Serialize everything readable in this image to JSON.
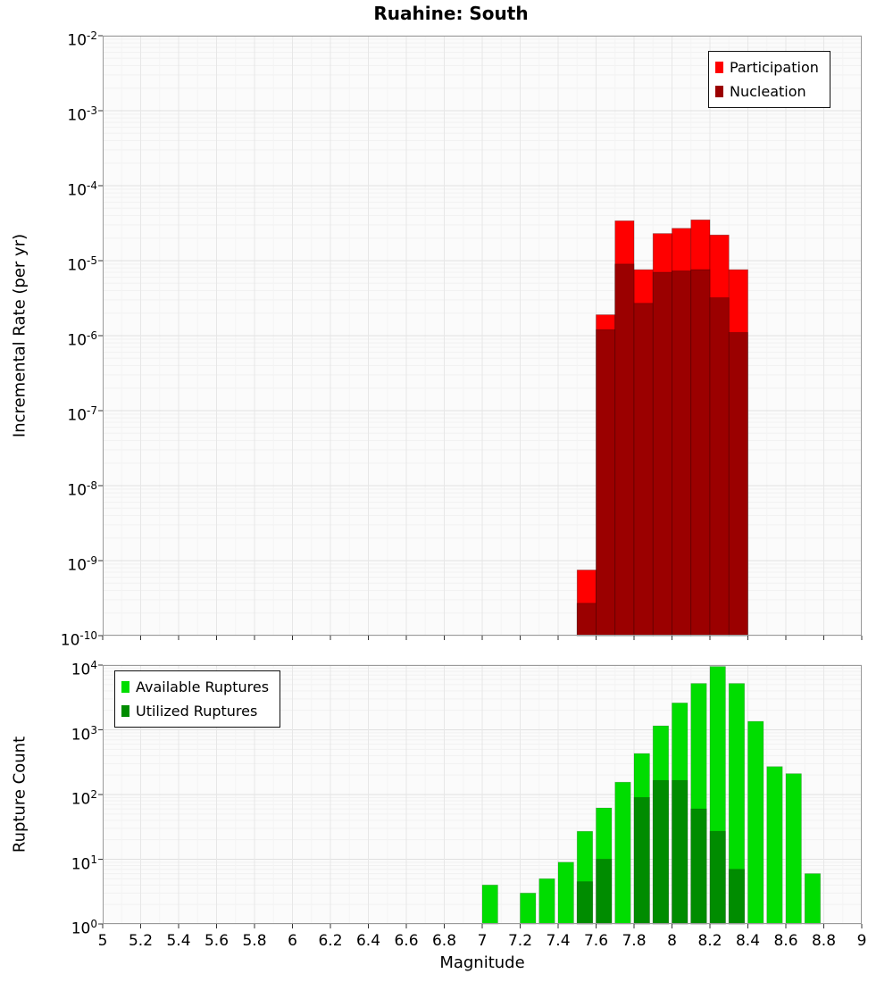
{
  "chart_data": [
    {
      "type": "bar",
      "title": "Ruahine: South",
      "ylabel": "Incremental Rate (per yr)",
      "xlabel": "",
      "y_scale": "log",
      "ylim": [
        1e-10,
        0.01
      ],
      "xlim": [
        5,
        9
      ],
      "x_tick_step": 0.2,
      "bin_width": 0.1,
      "grid": true,
      "legend_position": "top-right",
      "series": [
        {
          "name": "Participation",
          "color": "#ff0000",
          "points": [
            [
              7.5,
              7.5e-10
            ],
            [
              7.6,
              1.9e-06
            ],
            [
              7.7,
              3.4e-05
            ],
            [
              7.8,
              7.6e-06
            ],
            [
              7.9,
              2.3e-05
            ],
            [
              8.0,
              2.7e-05
            ],
            [
              8.1,
              3.5e-05
            ],
            [
              8.2,
              2.2e-05
            ],
            [
              8.3,
              7.6e-06
            ]
          ]
        },
        {
          "name": "Nucleation",
          "color": "#9b0000",
          "points": [
            [
              7.5,
              2.7e-10
            ],
            [
              7.6,
              1.2e-06
            ],
            [
              7.7,
              9e-06
            ],
            [
              7.8,
              2.7e-06
            ],
            [
              7.9,
              7e-06
            ],
            [
              8.0,
              7.3e-06
            ],
            [
              8.1,
              7.6e-06
            ],
            [
              8.2,
              3.2e-06
            ],
            [
              8.3,
              1.1e-06
            ]
          ]
        }
      ]
    },
    {
      "type": "bar",
      "title": "",
      "ylabel": "Rupture Count",
      "xlabel": "Magnitude",
      "y_scale": "log",
      "ylim": [
        1,
        10000
      ],
      "xlim": [
        5,
        9
      ],
      "x_tick_step": 0.2,
      "bin_width": 0.1,
      "grid": true,
      "legend_position": "top-left",
      "series": [
        {
          "name": "Available Ruptures",
          "color": "#00dd00",
          "points": [
            [
              7.0,
              4
            ],
            [
              7.2,
              3
            ],
            [
              7.3,
              5
            ],
            [
              7.4,
              9
            ],
            [
              7.5,
              27
            ],
            [
              7.6,
              62
            ],
            [
              7.7,
              155
            ],
            [
              7.8,
              430
            ],
            [
              7.9,
              1150
            ],
            [
              8.0,
              2600
            ],
            [
              8.1,
              5200
            ],
            [
              8.2,
              9500
            ],
            [
              8.3,
              5200
            ],
            [
              8.4,
              1350
            ],
            [
              8.5,
              270
            ],
            [
              8.6,
              210
            ],
            [
              8.7,
              6
            ]
          ]
        },
        {
          "name": "Utilized Ruptures",
          "color": "#008c00",
          "points": [
            [
              7.5,
              4.5
            ],
            [
              7.6,
              10
            ],
            [
              7.8,
              90
            ],
            [
              7.9,
              165
            ],
            [
              8.0,
              165
            ],
            [
              8.1,
              60
            ],
            [
              8.2,
              27
            ],
            [
              8.3,
              7
            ]
          ]
        }
      ]
    }
  ]
}
